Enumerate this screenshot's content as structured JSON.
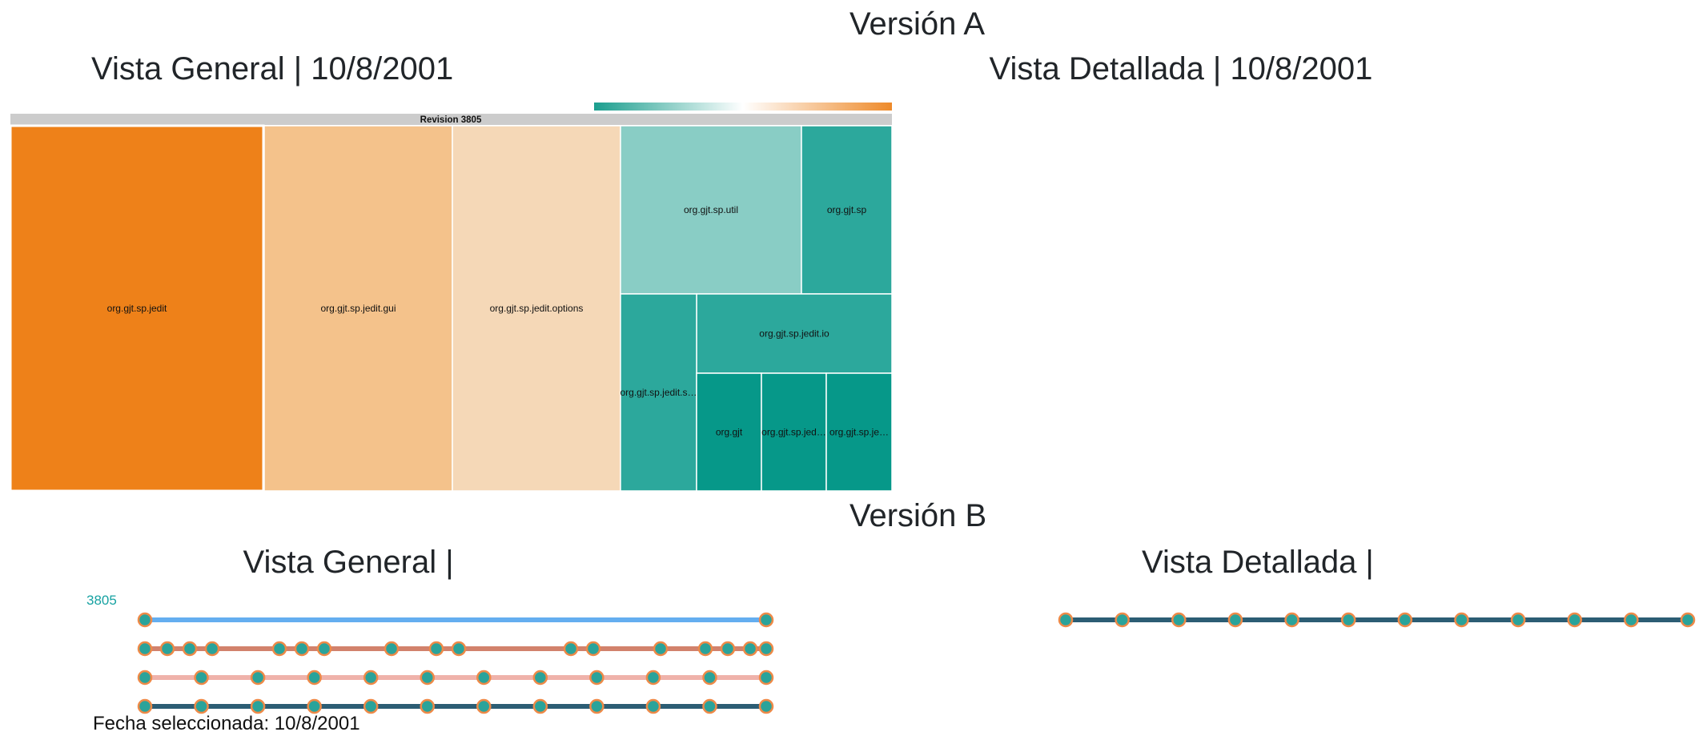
{
  "version_a": {
    "title": "Versión A",
    "general_title": "Vista General | 10/8/2001",
    "detail_title": "Vista Detallada | 10/8/2001",
    "treemap": {
      "header": "Revision 3805",
      "gradient": [
        "#1b9e8e",
        "#ffffff",
        "#ee8a2a"
      ],
      "cells": [
        {
          "label": "org.gjt.sp.jedit",
          "color": "#ee8119"
        },
        {
          "label": "org.gjt.sp.jedit.gui",
          "color": "#f4c28b"
        },
        {
          "label": "org.gjt.sp.jedit.options",
          "color": "#f5d8b7"
        },
        {
          "label": "org.gjt.sp.util",
          "color": "#89cdc5"
        },
        {
          "label": "org.gjt.sp",
          "color": "#2ca89c"
        },
        {
          "label": "org.gjt.sp.jedit.io",
          "color": "#2ca89c"
        },
        {
          "label": "org.gjt.sp.jedit.s…",
          "color": "#2ca89c"
        },
        {
          "label": "org.gjt",
          "color": "#069889"
        },
        {
          "label": "org.gjt.sp.jed…",
          "color": "#069889"
        },
        {
          "label": "org.gjt.sp.je…",
          "color": "#069889"
        }
      ]
    }
  },
  "version_b": {
    "title": "Versión B",
    "general_title": "Vista General |",
    "detail_title": "Vista Detallada |",
    "revision_label": "3805",
    "selected_date": "Fecha seleccionada: 10/8/2001",
    "node_fill": "#2aa39a",
    "node_stroke": "#ee8a48",
    "general_lines": [
      {
        "color": "#64aef0",
        "points": 2
      },
      {
        "color": "#d2826c",
        "points": 22
      },
      {
        "color": "#efb2aa",
        "points": 12
      },
      {
        "color": "#2c5d74",
        "points": 12
      }
    ],
    "detail_line": {
      "color": "#2c5d74",
      "points": 12
    }
  }
}
